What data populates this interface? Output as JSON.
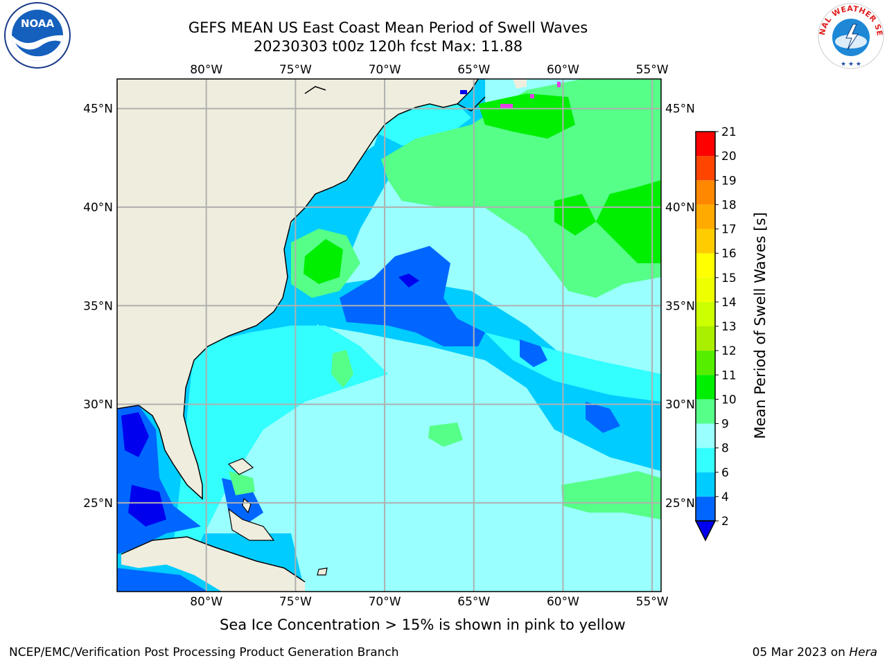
{
  "title": {
    "line1": "GEFS MEAN US East Coast Mean Period of Swell Waves",
    "line2": "20230303 t00z 120h fcst   Max: 11.88"
  },
  "map": {
    "projection": "cylindrical",
    "lon_range": [
      -85,
      -54.5
    ],
    "lat_range": [
      20.5,
      46.5
    ],
    "lon_ticks": [
      {
        "value": -80,
        "label": "80°W"
      },
      {
        "value": -75,
        "label": "75°W"
      },
      {
        "value": -70,
        "label": "70°W"
      },
      {
        "value": -65,
        "label": "65°W"
      },
      {
        "value": -60,
        "label": "60°W"
      },
      {
        "value": -55,
        "label": "55°W"
      }
    ],
    "lat_ticks": [
      {
        "value": 45,
        "label": "45°N"
      },
      {
        "value": 40,
        "label": "40°N"
      },
      {
        "value": 35,
        "label": "35°N"
      },
      {
        "value": 30,
        "label": "30°N"
      },
      {
        "value": 25,
        "label": "25°N"
      }
    ],
    "colors": {
      "land": "#efedde",
      "ocean_default": "#99ffff",
      "grid": "#b0b0b0",
      "coast": "#000000",
      "sea_ice": "#e63ee6"
    }
  },
  "colorbar": {
    "title": "Mean Period of Swell Waves [s]",
    "boundaries": [
      2,
      4,
      6,
      8,
      9,
      10,
      11,
      12,
      13,
      14,
      15,
      16,
      17,
      18,
      19,
      20,
      21
    ],
    "colors": [
      "#0066ff",
      "#00ccff",
      "#33ffff",
      "#99ffff",
      "#55ff88",
      "#00ee00",
      "#55ee00",
      "#aaee00",
      "#ccff00",
      "#eeff00",
      "#ffff00",
      "#ffcc00",
      "#ffaa00",
      "#ff8800",
      "#ff4400",
      "#ff0000"
    ],
    "under_color": "#0000ee"
  },
  "ice_note": "Sea Ice Concentration > 15% is shown in pink to yellow",
  "footer": {
    "left": "NCEP/EMC/Verification Post Processing Product Generation Branch",
    "date": "05 Mar 2023 on ",
    "host": "Hera"
  },
  "logos": {
    "noaa_text": "NOAA",
    "nws_text": "NATIONAL WEATHER SERVICE"
  }
}
